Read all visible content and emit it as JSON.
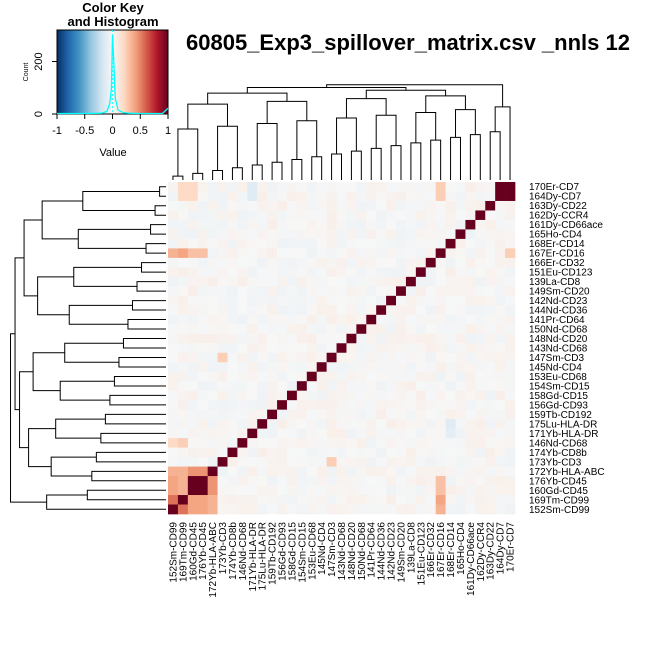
{
  "chart_data": [
    {
      "type": "heatmap",
      "title": "60805_Exp3_spillover_matrix.csv _nnls 12",
      "row_labels": [
        "170Er-CD7",
        "164Dy-CD7",
        "163Dy-CD22",
        "162Dy-CCR4",
        "161Dy-CD66ace",
        "165Ho-CD4",
        "168Er-CD14",
        "167Er-CD16",
        "166Er-CD32",
        "151Eu-CD123",
        "139La-CD8",
        "149Sm-CD20",
        "142Nd-CD23",
        "144Nd-CD36",
        "141Pr-CD64",
        "150Nd-CD68",
        "148Nd-CD20",
        "143Nd-CD68",
        "147Sm-CD3",
        "145Nd-CD4",
        "153Eu-CD68",
        "154Sm-CD15",
        "158Gd-CD15",
        "156Gd-CD93",
        "159Tb-CD192",
        "175Lu-HLA-DR",
        "171Yb-HLA-DR",
        "146Nd-CD68",
        "174Yb-CD8b",
        "173Yb-CD3",
        "172Yb-HLA-ABC",
        "176Yb-CD45",
        "160Gd-CD45",
        "169Tm-CD99",
        "152Sm-CD99"
      ],
      "col_labels": [
        "152Sm-CD99",
        "169Tm-CD99",
        "160Gd-CD45",
        "176Yb-CD45",
        "172Yb-HLA-ABC",
        "173Yb-CD3",
        "174Yb-CD8b",
        "146Nd-CD68",
        "171Yb-HLA-DR",
        "175Lu-HLA-DR",
        "159Tb-CD192",
        "156Gd-CD93",
        "158Gd-CD15",
        "154Sm-CD15",
        "153Eu-CD68",
        "145Nd-CD4",
        "147Sm-CD3",
        "143Nd-CD68",
        "148Nd-CD20",
        "150Nd-CD68",
        "141Pr-CD64",
        "144Nd-CD36",
        "142Nd-CD23",
        "149Sm-CD20",
        "139La-CD8",
        "151Eu-CD123",
        "166Er-CD32",
        "167Er-CD16",
        "168Er-CD14",
        "165Ho-CD4",
        "161Dy-CD66ace",
        "162Dy-CCR4",
        "163Dy-CD22",
        "164Dy-CD7",
        "170Er-CD7"
      ],
      "value_range": [
        -1,
        1
      ],
      "colormap": [
        "#053061",
        "#2166ac",
        "#4393c3",
        "#92c5de",
        "#d1e5f0",
        "#f7f7f7",
        "#fddbc7",
        "#f4a582",
        "#d6604d",
        "#b2182b",
        "#67001f"
      ],
      "diagonal_value": 1.0,
      "notable_cells": [
        {
          "row": "164Dy-CD7",
          "col": "170Er-CD7",
          "value": 1.0
        },
        {
          "row": "170Er-CD7",
          "col": "164Dy-CD7",
          "value": 1.0
        },
        {
          "row": "176Yb-CD45",
          "col": "160Gd-CD45",
          "value": 1.0
        },
        {
          "row": "160Gd-CD45",
          "col": "176Yb-CD45",
          "value": 1.0
        },
        {
          "row": "169Tm-CD99",
          "col": "152Sm-CD99",
          "value": 0.55
        },
        {
          "row": "152Sm-CD99",
          "col": "169Tm-CD99",
          "value": 0.55
        },
        {
          "row": "176Yb-CD45",
          "col": "172Yb-HLA-ABC",
          "value": 0.45
        },
        {
          "row": "160Gd-CD45",
          "col": "172Yb-HLA-ABC",
          "value": 0.45
        },
        {
          "row": "172Yb-HLA-ABC",
          "col": "176Yb-CD45",
          "value": 0.45
        },
        {
          "row": "172Yb-HLA-ABC",
          "col": "160Gd-CD45",
          "value": 0.45
        },
        {
          "row": "176Yb-CD45",
          "col": "152Sm-CD99",
          "value": 0.4
        },
        {
          "row": "160Gd-CD45",
          "col": "152Sm-CD99",
          "value": 0.4
        },
        {
          "row": "169Tm-CD99",
          "col": "176Yb-CD45",
          "value": 0.4
        },
        {
          "row": "169Tm-CD99",
          "col": "160Gd-CD45",
          "value": 0.4
        },
        {
          "row": "152Sm-CD99",
          "col": "176Yb-CD45",
          "value": 0.4
        },
        {
          "row": "152Sm-CD99",
          "col": "160Gd-CD45",
          "value": 0.4
        },
        {
          "row": "172Yb-HLA-ABC",
          "col": "152Sm-CD99",
          "value": 0.35
        },
        {
          "row": "172Yb-HLA-ABC",
          "col": "169Tm-CD99",
          "value": 0.35
        },
        {
          "row": "169Tm-CD99",
          "col": "172Yb-HLA-ABC",
          "value": 0.35
        },
        {
          "row": "152Sm-CD99",
          "col": "172Yb-HLA-ABC",
          "value": 0.35
        },
        {
          "row": "176Yb-CD45",
          "col": "169Tm-CD99",
          "value": 0.35
        },
        {
          "row": "160Gd-CD45",
          "col": "169Tm-CD99",
          "value": 0.35
        },
        {
          "row": "167Er-CD16",
          "col": "169Tm-CD99",
          "value": 0.4
        },
        {
          "row": "167Er-CD16",
          "col": "152Sm-CD99",
          "value": 0.35
        },
        {
          "row": "167Er-CD16",
          "col": "160Gd-CD45",
          "value": 0.3
        },
        {
          "row": "167Er-CD16",
          "col": "176Yb-CD45",
          "value": 0.3
        },
        {
          "row": "167Er-CD16",
          "col": "170Er-CD7",
          "value": 0.25
        },
        {
          "row": "169Tm-CD99",
          "col": "167Er-CD16",
          "value": 0.4
        },
        {
          "row": "152Sm-CD99",
          "col": "167Er-CD16",
          "value": 0.35
        },
        {
          "row": "160Gd-CD45",
          "col": "167Er-CD16",
          "value": 0.3
        },
        {
          "row": "176Yb-CD45",
          "col": "167Er-CD16",
          "value": 0.3
        },
        {
          "row": "170Er-CD7",
          "col": "167Er-CD16",
          "value": 0.25
        },
        {
          "row": "164Dy-CD7",
          "col": "167Er-CD16",
          "value": 0.25
        },
        {
          "row": "170Er-CD7",
          "col": "169Tm-CD99",
          "value": 0.2
        },
        {
          "row": "170Er-CD7",
          "col": "160Gd-CD45",
          "value": 0.2
        },
        {
          "row": "164Dy-CD7",
          "col": "160Gd-CD45",
          "value": 0.2
        },
        {
          "row": "164Dy-CD7",
          "col": "169Tm-CD99",
          "value": 0.2
        },
        {
          "row": "147Sm-CD3",
          "col": "173Yb-CD3",
          "value": 0.25
        },
        {
          "row": "173Yb-CD3",
          "col": "147Sm-CD3",
          "value": 0.25
        },
        {
          "row": "146Nd-CD68",
          "col": "169Tm-CD99",
          "value": 0.25
        },
        {
          "row": "146Nd-CD68",
          "col": "152Sm-CD99",
          "value": 0.2
        },
        {
          "row": "170Er-CD7",
          "col": "171Yb-HLA-DR",
          "value": -0.12
        },
        {
          "row": "164Dy-CD7",
          "col": "171Yb-HLA-DR",
          "value": -0.12
        },
        {
          "row": "175Lu-HLA-DR",
          "col": "168Er-CD14",
          "value": -0.12
        },
        {
          "row": "171Yb-HLA-DR",
          "col": "168Er-CD14",
          "value": -0.1
        }
      ],
      "col_dendrogram_order_note": "",
      "color_key": {
        "title": "Color Key\nand Histogram",
        "xlabel": "Value",
        "ylabel": "Count",
        "xticks": [
          "-1",
          "-0.5",
          "0",
          "0.5",
          "1"
        ],
        "yticks": [
          "0",
          "200"
        ],
        "xlim": [
          -1,
          1
        ],
        "ylim": [
          0,
          320
        ],
        "histogram_color": "#00ffff",
        "histogram": [
          {
            "x": -1.0,
            "count": 2
          },
          {
            "x": -0.5,
            "count": 2
          },
          {
            "x": -0.2,
            "count": 3
          },
          {
            "x": -0.1,
            "count": 10
          },
          {
            "x": -0.05,
            "count": 40
          },
          {
            "x": -0.02,
            "count": 95
          },
          {
            "x": 0.0,
            "count": 300
          },
          {
            "x": 0.02,
            "count": 215
          },
          {
            "x": 0.05,
            "count": 60
          },
          {
            "x": 0.1,
            "count": 15
          },
          {
            "x": 0.2,
            "count": 5
          },
          {
            "x": 0.3,
            "count": 3
          },
          {
            "x": 0.5,
            "count": 2
          },
          {
            "x": 0.9,
            "count": 2
          },
          {
            "x": 1.0,
            "count": 22
          }
        ]
      }
    }
  ]
}
